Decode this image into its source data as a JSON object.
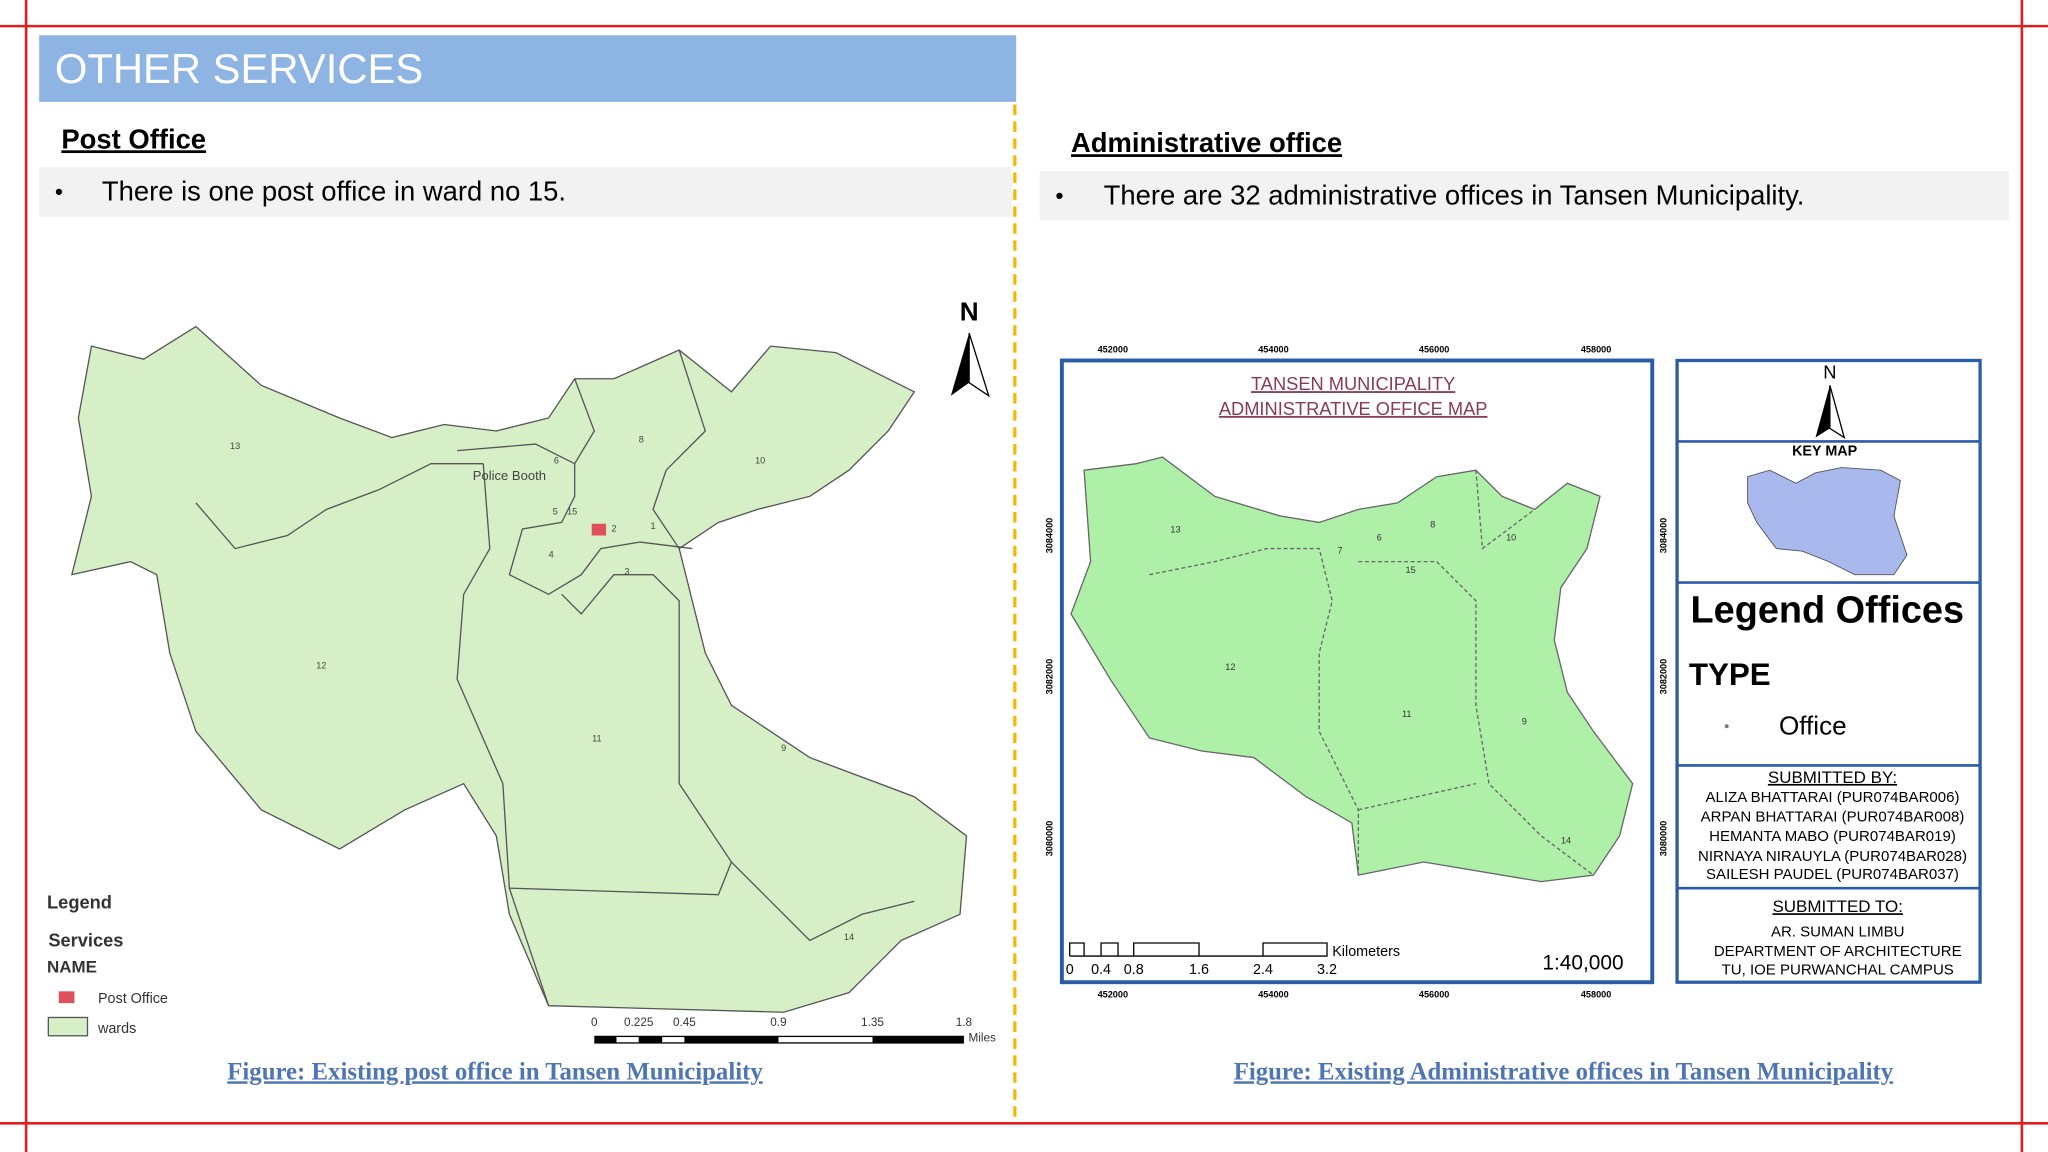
{
  "header": {
    "title": "OTHER SERVICES"
  },
  "post_office": {
    "heading": "Post Office",
    "bullet": "There is one post office in ward no 15.",
    "caption": "Figure: Existing post office in Tansen Municipality",
    "map": {
      "north": "N",
      "ward_labels": [
        "13",
        "12",
        "11",
        "9",
        "10",
        "8",
        "6",
        "5",
        "15",
        "1",
        "2",
        "4",
        "3",
        "14"
      ],
      "place_label": "Police Booth",
      "legend": {
        "title": "Legend",
        "group": "Services",
        "field": "NAME",
        "items": [
          "Post Office",
          "wards"
        ]
      },
      "scale": {
        "ticks": [
          "0",
          "0.225",
          "0.45",
          "0.9",
          "1.35",
          "1.8"
        ],
        "unit": "Miles"
      }
    }
  },
  "administrative_office": {
    "heading": "Administrative office",
    "bullet": "There are 32 administrative offices in Tansen Municipality.",
    "caption": "Figure: Existing Administrative offices in Tansen Municipality",
    "map": {
      "title": [
        "TANSEN MUNICIPALITY",
        "ADMINISTRATIVE OFFICE MAP"
      ],
      "eastings": [
        "452000",
        "454000",
        "456000",
        "458000"
      ],
      "northings": [
        "3084000",
        "3082000",
        "3080000"
      ],
      "ward_labels": [
        "13",
        "12",
        "11",
        "9",
        "10",
        "8",
        "6",
        "7",
        "15",
        "14"
      ],
      "scale": {
        "ticks": [
          "0",
          "0.4",
          "0.8",
          "1.6",
          "2.4",
          "3.2"
        ],
        "unit": "Kilometers"
      },
      "ratio": "1:40,000",
      "key": {
        "north": "N",
        "key_map": "KEY MAP",
        "legend_title": "Legend Offices",
        "type_label": "TYPE",
        "item": "Office",
        "submitted_by": {
          "title": "SUBMITTED BY:",
          "names": [
            "ALIZA BHATTARAI (PUR074BAR006)",
            "ARPAN BHATTARAI (PUR074BAR008)",
            "HEMANTA MABO (PUR074BAR019)",
            "NIRNAYA NIRAUYLA (PUR074BAR028)",
            "SAILESH PAUDEL (PUR074BAR037)"
          ]
        },
        "submitted_to": {
          "title": "SUBMITTED TO:",
          "lines": [
            "AR. SUMAN LIMBU",
            "DEPARTMENT OF ARCHITECTURE",
            "TU, IOE PURWANCHAL CAMPUS"
          ]
        }
      }
    }
  }
}
